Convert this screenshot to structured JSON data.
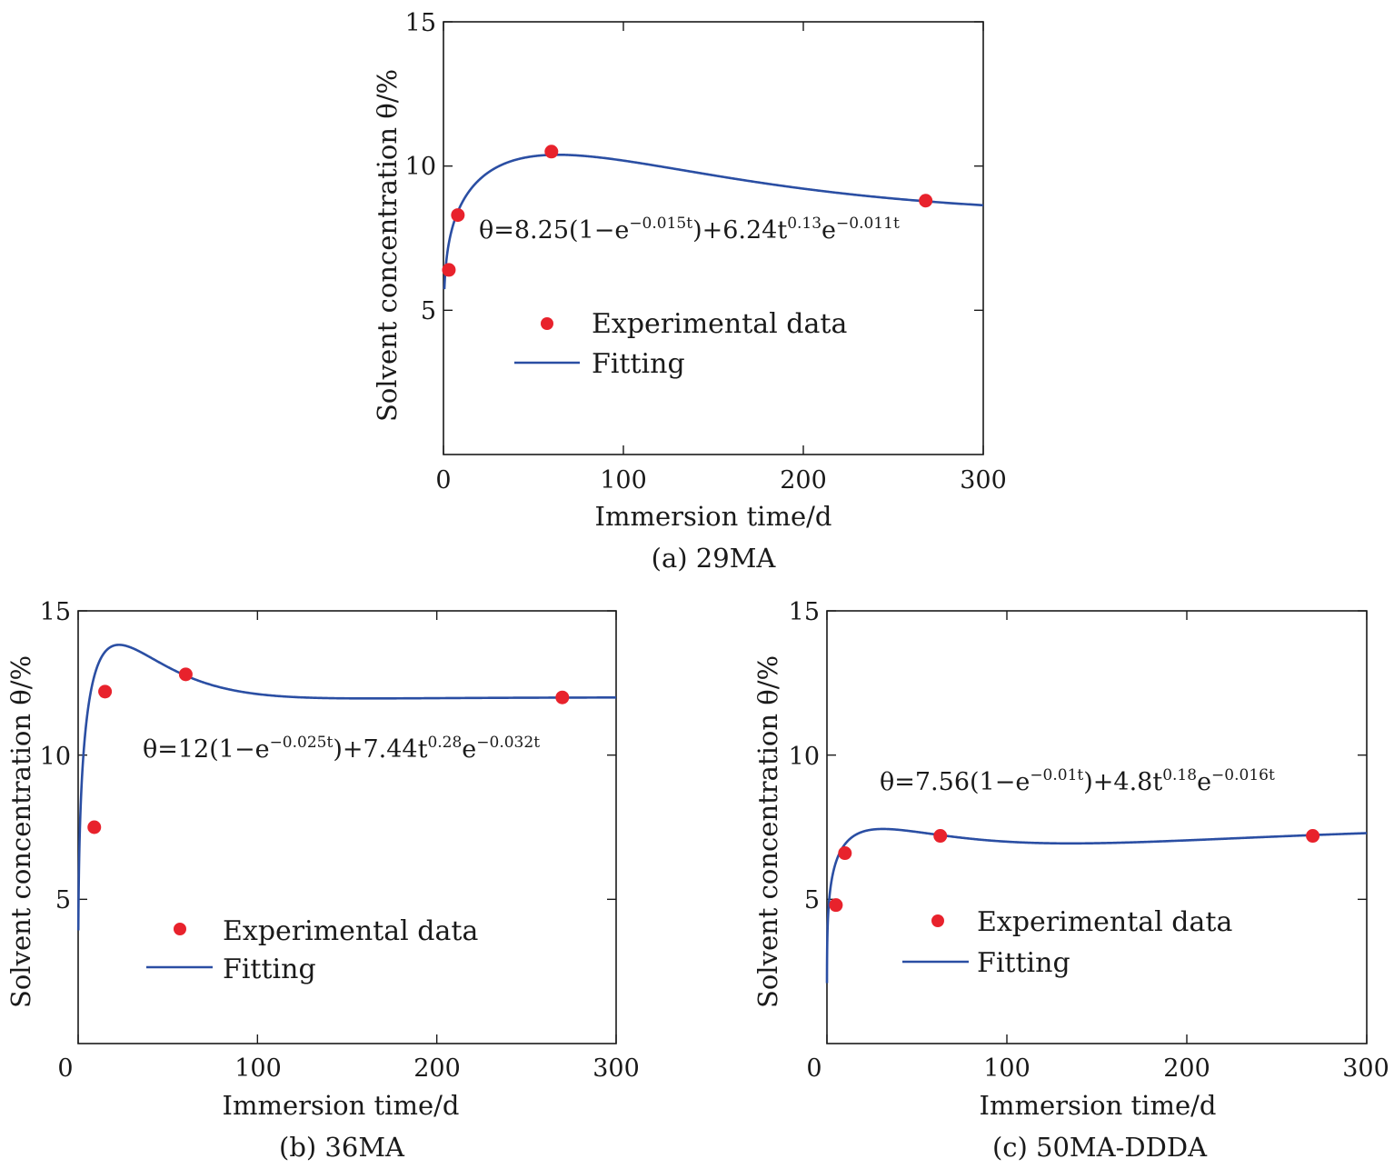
{
  "legend": {
    "experimental_label": "Experimental data",
    "fitting_label": "Fitting"
  },
  "colors": {
    "point": "#e8222c",
    "line": "#2a4ea3",
    "axis": "#1a1a1a"
  },
  "chart_data": [
    {
      "type": "scatter",
      "panel": "a",
      "caption": "(a) 29MA",
      "xlabel": "Immersion time/d",
      "ylabel": "Solvent concentration θ/%",
      "xlim": [
        0,
        300
      ],
      "ylim": [
        0,
        15
      ],
      "xticks": [
        "0",
        "100",
        "200",
        "300"
      ],
      "yticks": [
        "5",
        "10",
        "15"
      ],
      "equation": "θ=8.25(1−e^{−0.015t})+6.24t^{0.13}e^{−0.011t}",
      "series": [
        {
          "name": "Experimental data",
          "x": [
            3,
            8,
            60,
            268
          ],
          "y": [
            6.4,
            8.3,
            10.5,
            8.8
          ]
        },
        {
          "name": "Fitting",
          "model": {
            "a": 8.25,
            "k": 0.015,
            "b": 6.24,
            "p": 0.13,
            "m": 0.011
          },
          "x_range": [
            0.5,
            300
          ]
        }
      ]
    },
    {
      "type": "scatter",
      "panel": "b",
      "caption": "(b) 36MA",
      "xlabel": "Immersion time/d",
      "ylabel": "Solvent concentration θ/%",
      "xlim": [
        0,
        300
      ],
      "ylim": [
        0,
        15
      ],
      "xticks": [
        "0",
        "100",
        "200",
        "300"
      ],
      "yticks": [
        "5",
        "10",
        "15"
      ],
      "equation": "θ=12(1−e^{−0.025t})+7.44t^{0.28}e^{−0.032t}",
      "series": [
        {
          "name": "Experimental data",
          "x": [
            9,
            15,
            60,
            270
          ],
          "y": [
            7.5,
            12.2,
            12.8,
            12
          ]
        },
        {
          "name": "Fitting",
          "model": {
            "a": 12,
            "k": 0.025,
            "b": 7.44,
            "p": 0.28,
            "m": 0.032
          },
          "x_range": [
            0.1,
            300
          ]
        }
      ]
    },
    {
      "type": "scatter",
      "panel": "c",
      "caption": "(c) 50MA-DDDA",
      "xlabel": "Immersion time/d",
      "ylabel": "Solvent concentration θ/%",
      "xlim": [
        0,
        300
      ],
      "ylim": [
        0,
        15
      ],
      "xticks": [
        "0",
        "100",
        "200",
        "300"
      ],
      "yticks": [
        "5",
        "10",
        "15"
      ],
      "equation": "θ=7.56(1−e^{−0.01t})+4.8t^{0.18}e^{−0.016t}",
      "series": [
        {
          "name": "Experimental data",
          "x": [
            5,
            10,
            63,
            270
          ],
          "y": [
            4.8,
            6.6,
            7.2,
            7.2
          ]
        },
        {
          "name": "Fitting",
          "model": {
            "a": 7.56,
            "k": 0.01,
            "b": 4.8,
            "p": 0.18,
            "m": 0.016
          },
          "x_range": [
            0.01,
            300
          ]
        }
      ]
    }
  ]
}
